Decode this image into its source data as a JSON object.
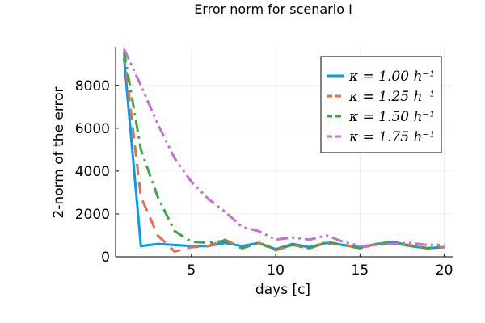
{
  "chart_data": {
    "type": "line",
    "title": "Error norm for scenario I",
    "xlabel": "days [c]",
    "ylabel": "2-norm of the error",
    "xlim": [
      0.5,
      20.5
    ],
    "ylim": [
      0,
      9800
    ],
    "xticks": [
      5,
      10,
      15,
      20
    ],
    "yticks": [
      0,
      2000,
      4000,
      6000,
      8000
    ],
    "grid": true,
    "legend_position": "top-right",
    "series": [
      {
        "name": "κ = 1.00 h⁻¹",
        "color": "#009AFA",
        "dash": "solid",
        "x": [
          1,
          2,
          3,
          4,
          5,
          6,
          7,
          8,
          9,
          10,
          11,
          12,
          13,
          14,
          15,
          16,
          17,
          18,
          19,
          20
        ],
        "y": [
          9300,
          500,
          600,
          550,
          500,
          500,
          650,
          500,
          650,
          350,
          600,
          450,
          650,
          550,
          450,
          600,
          700,
          500,
          400,
          450
        ]
      },
      {
        "name": "κ = 1.25 h⁻¹",
        "color": "#E26F46",
        "dash": "dash",
        "x": [
          1,
          2,
          3,
          4,
          5,
          6,
          7,
          8,
          9,
          10,
          11,
          12,
          13,
          14,
          15,
          16,
          17,
          18,
          19,
          20
        ],
        "y": [
          9500,
          2800,
          1000,
          250,
          450,
          500,
          800,
          400,
          650,
          300,
          550,
          400,
          650,
          550,
          400,
          600,
          600,
          550,
          400,
          450
        ]
      },
      {
        "name": "κ = 1.50 h⁻¹",
        "color": "#3DA44D",
        "dash": "dashdot",
        "x": [
          1,
          2,
          3,
          4,
          5,
          6,
          7,
          8,
          9,
          10,
          11,
          12,
          13,
          14,
          15,
          16,
          17,
          18,
          19,
          20
        ],
        "y": [
          9600,
          5000,
          2800,
          1200,
          700,
          650,
          750,
          400,
          650,
          350,
          550,
          400,
          700,
          550,
          400,
          600,
          650,
          500,
          400,
          500
        ]
      },
      {
        "name": "κ = 1.75 h⁻¹",
        "color": "#C271D2",
        "dash": "dashdotdot",
        "x": [
          1,
          2,
          3,
          4,
          5,
          6,
          7,
          8,
          9,
          10,
          11,
          12,
          13,
          14,
          15,
          16,
          17,
          18,
          19,
          20
        ],
        "y": [
          9700,
          8000,
          6200,
          4600,
          3500,
          2700,
          2100,
          1400,
          1200,
          800,
          900,
          800,
          1000,
          700,
          500,
          550,
          600,
          650,
          550,
          550
        ]
      }
    ]
  }
}
